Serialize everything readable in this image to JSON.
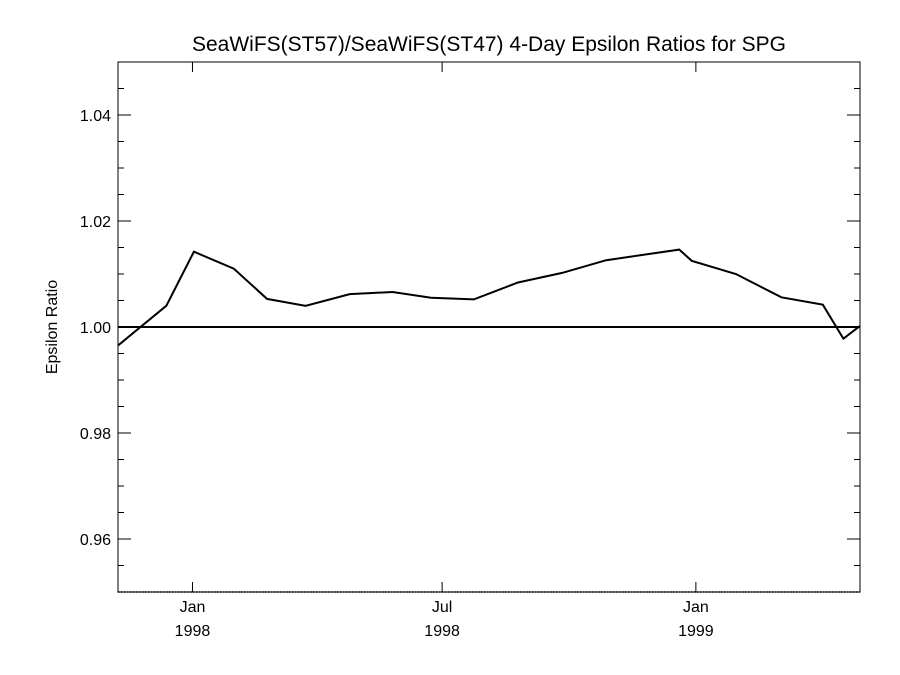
{
  "chart_data": {
    "type": "line",
    "title": "SeaWiFS(ST57)/SeaWiFS(ST47) 4-Day Epsilon Ratios for SPG",
    "xlabel": "",
    "ylabel": "Epsilon Ratio",
    "xlim": [
      "1997-11-08",
      "1999-04-30"
    ],
    "ylim": [
      0.95,
      1.05
    ],
    "y_ticks": [
      {
        "value": 0.96,
        "label": "0.96"
      },
      {
        "value": 0.98,
        "label": "0.98"
      },
      {
        "value": 1.0,
        "label": "1.00"
      },
      {
        "value": 1.02,
        "label": "1.02"
      },
      {
        "value": 1.04,
        "label": "1.04"
      }
    ],
    "x_ticks": [
      {
        "date": "1998-01-01",
        "month": "Jan",
        "year": "1998"
      },
      {
        "date": "1998-07-01",
        "month": "Jul",
        "year": "1998"
      },
      {
        "date": "1999-01-01",
        "month": "Jan",
        "year": "1999"
      }
    ],
    "reference_line": {
      "y": 1.0
    },
    "grid": false,
    "series": [
      {
        "color": "#000000",
        "x": [
          "1997-11-08",
          "1997-12-13",
          "1998-01-02",
          "1998-01-31",
          "1998-02-24",
          "1998-03-24",
          "1998-04-25",
          "1998-05-26",
          "1998-06-23",
          "1998-07-24",
          "1998-08-25",
          "1998-09-26",
          "1998-10-28",
          "1998-12-20",
          "1998-12-29",
          "1999-01-30",
          "1999-03-04",
          "1999-04-03",
          "1999-04-18",
          "1999-04-30"
        ],
        "y": [
          0.9965,
          1.004,
          1.0142,
          1.011,
          1.0053,
          1.004,
          1.0062,
          1.0066,
          1.0055,
          1.0052,
          1.0084,
          1.0102,
          1.0126,
          1.0146,
          1.0125,
          1.01,
          1.0056,
          1.0042,
          0.9978,
          1.0002
        ]
      }
    ]
  }
}
